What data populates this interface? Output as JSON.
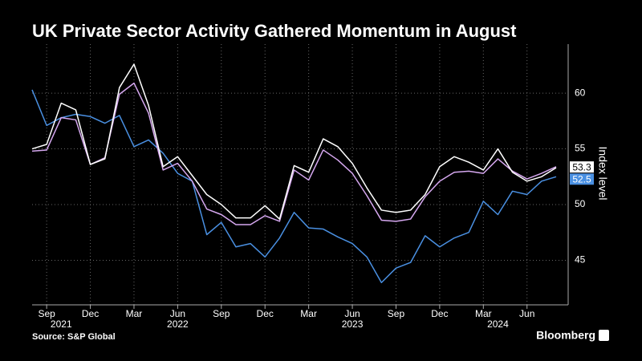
{
  "chart_data": {
    "type": "line",
    "title": "UK Private Sector Activity Gathered Momentum in August",
    "y_axis_label": "Index level",
    "source": "Source: S&P Global",
    "brand": "Bloomberg",
    "x": [
      "2021-08",
      "2021-09",
      "2021-10",
      "2021-11",
      "2021-12",
      "2022-01",
      "2022-02",
      "2022-03",
      "2022-04",
      "2022-05",
      "2022-06",
      "2022-07",
      "2022-08",
      "2022-09",
      "2022-10",
      "2022-11",
      "2022-12",
      "2023-01",
      "2023-02",
      "2023-03",
      "2023-04",
      "2023-05",
      "2023-06",
      "2023-07",
      "2023-08",
      "2023-09",
      "2023-10",
      "2023-11",
      "2023-12",
      "2024-01",
      "2024-02",
      "2024-03",
      "2024-04",
      "2024-05",
      "2024-06",
      "2024-07",
      "2024-08"
    ],
    "xticks": [
      {
        "value": "2021-09",
        "label": "Sep"
      },
      {
        "value": "2021-12",
        "label": "Dec"
      },
      {
        "value": "2022-03",
        "label": "Mar"
      },
      {
        "value": "2022-06",
        "label": "Jun"
      },
      {
        "value": "2022-09",
        "label": "Sep"
      },
      {
        "value": "2022-12",
        "label": "Dec"
      },
      {
        "value": "2023-03",
        "label": "Mar"
      },
      {
        "value": "2023-06",
        "label": "Jun"
      },
      {
        "value": "2023-09",
        "label": "Sep"
      },
      {
        "value": "2023-12",
        "label": "Dec"
      },
      {
        "value": "2024-03",
        "label": "Mar"
      },
      {
        "value": "2024-06",
        "label": "Jun"
      }
    ],
    "year_labels": [
      {
        "value": "2021-10",
        "label": "2021"
      },
      {
        "value": "2022-06",
        "label": "2022"
      },
      {
        "value": "2023-06",
        "label": "2023"
      },
      {
        "value": "2024-04",
        "label": "2024"
      }
    ],
    "ylim": [
      41,
      64.4
    ],
    "yticks": [
      45,
      50,
      55,
      60
    ],
    "grid": true,
    "series": [
      {
        "color": "#4a90e2",
        "end_label": true,
        "values": [
          60.3,
          57.1,
          57.8,
          58.1,
          57.9,
          57.3,
          58.0,
          55.2,
          55.8,
          54.6,
          52.8,
          52.1,
          47.3,
          48.4,
          46.2,
          46.5,
          45.3,
          47.0,
          49.3,
          47.9,
          47.8,
          47.1,
          46.5,
          45.3,
          43.0,
          44.3,
          44.8,
          47.2,
          46.2,
          47.0,
          47.5,
          50.3,
          49.1,
          51.2,
          50.9,
          52.1,
          52.5
        ]
      },
      {
        "color": "#d6a8f0",
        "end_label": false,
        "values": [
          54.8,
          54.9,
          57.8,
          57.6,
          53.6,
          54.2,
          59.9,
          60.9,
          58.2,
          53.1,
          53.7,
          52.1,
          49.6,
          49.1,
          48.2,
          48.2,
          49.0,
          48.5,
          53.1,
          52.2,
          54.9,
          54.0,
          52.8,
          50.8,
          48.6,
          48.5,
          48.7,
          50.7,
          52.1,
          52.9,
          53.0,
          52.8,
          54.1,
          53.0,
          52.3,
          52.8,
          53.4
        ]
      },
      {
        "color": "#ffffff",
        "end_label": true,
        "values": [
          55.0,
          55.4,
          59.1,
          58.5,
          53.6,
          54.1,
          60.5,
          62.6,
          58.9,
          53.4,
          54.3,
          52.6,
          50.9,
          50.0,
          48.8,
          48.8,
          49.9,
          48.7,
          53.5,
          52.9,
          55.9,
          55.2,
          53.7,
          51.5,
          49.5,
          49.3,
          49.5,
          50.9,
          53.4,
          54.3,
          53.8,
          53.1,
          55.0,
          52.9,
          52.1,
          52.5,
          53.3
        ]
      }
    ]
  }
}
